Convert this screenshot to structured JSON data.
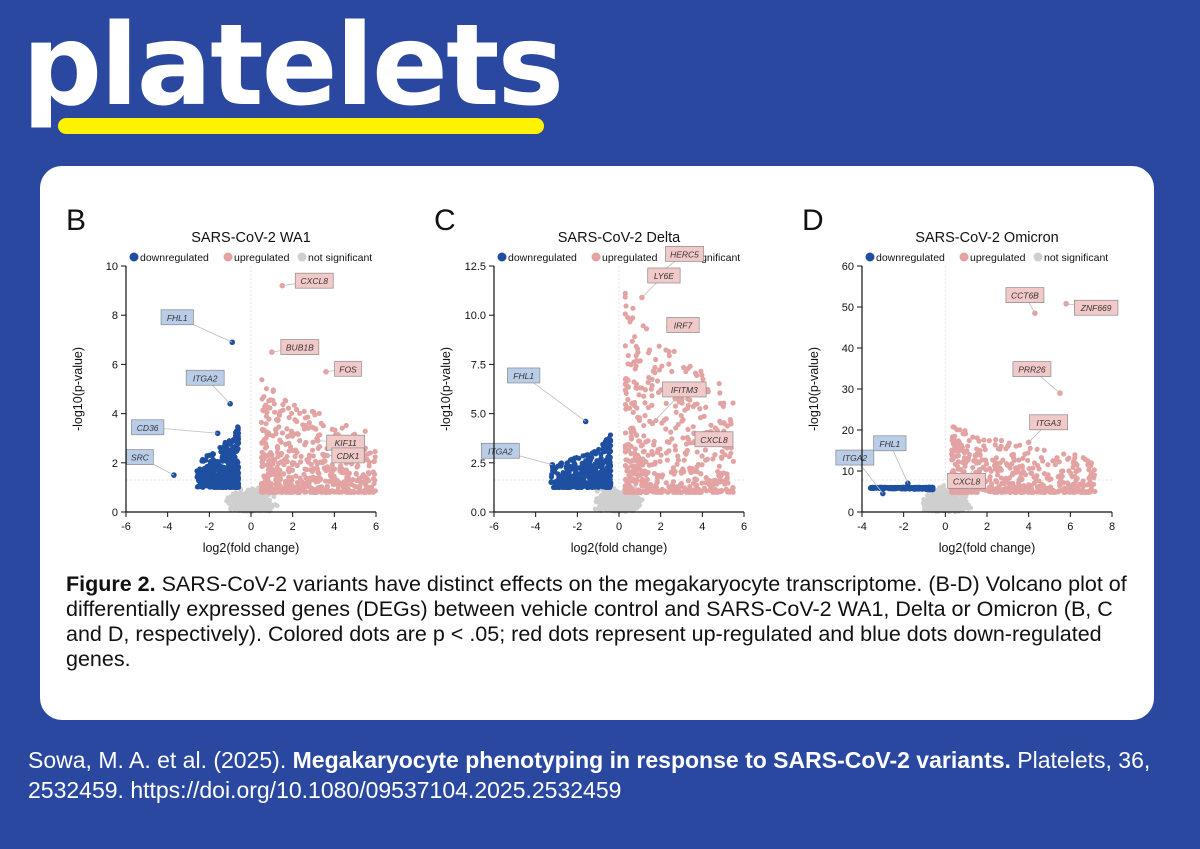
{
  "brand": {
    "name": "platelets",
    "bar_color": "#fff200",
    "bg_color": "#2a48a0"
  },
  "caption": {
    "label": "Figure 2.",
    "text": " SARS-CoV-2 variants have distinct effects on the megakaryocyte transcriptome. (B-D) Volcano plot of differentially expressed genes (DEGs) between vehicle control and SARS-CoV-2 WA1, Delta or Omicron (B, C and D, respectively). Colored dots are p < .05; red dots represent up-regulated and blue dots down-regulated genes."
  },
  "citation": {
    "authors": "Sowa, M. A. et al. (2025). ",
    "title": "Megakaryocyte phenotyping in response to SARS-CoV-2 variants.",
    "source": " Platelets, 36, 2532459. https://doi.org/10.1080/09537104.2025.2532459"
  },
  "colors": {
    "down": "#1f4fa0",
    "up": "#e3a3a3",
    "ns": "#cfcfcf",
    "down_box": "#b9cde8",
    "up_box": "#f1c9c9"
  },
  "chart_data": [
    {
      "type": "scatter",
      "panel_letter": "B",
      "title": "SARS-CoV-2 WA1",
      "legend": [
        "downregulated",
        "upregulated",
        "not significant"
      ],
      "xlabel": "log2(fold change)",
      "ylabel": "-log10(p-value)",
      "xlim": [
        -6,
        6
      ],
      "ylim": [
        0,
        10
      ],
      "xticks": [
        "-6",
        "-4",
        "-2",
        "0",
        "2",
        "4",
        "6"
      ],
      "yticks": [
        "0",
        "2",
        "4",
        "6",
        "8",
        "10"
      ],
      "labeled_genes": [
        {
          "gene": "FHL1",
          "x": -0.9,
          "y": 6.9,
          "regulation": "down"
        },
        {
          "gene": "ITGA2",
          "x": -1.0,
          "y": 4.4,
          "regulation": "down"
        },
        {
          "gene": "CD36",
          "x": -1.6,
          "y": 3.2,
          "regulation": "down"
        },
        {
          "gene": "SRC",
          "x": -3.7,
          "y": 1.5,
          "regulation": "down"
        },
        {
          "gene": "CXCL8",
          "x": 1.5,
          "y": 9.2,
          "regulation": "up"
        },
        {
          "gene": "BUB1B",
          "x": 1.0,
          "y": 6.5,
          "regulation": "up"
        },
        {
          "gene": "FOS",
          "x": 3.6,
          "y": 5.7,
          "regulation": "up"
        },
        {
          "gene": "KIF11",
          "x": 3.2,
          "y": 2.9,
          "regulation": "up"
        },
        {
          "gene": "CDK1",
          "x": 3.6,
          "y": 2.3,
          "regulation": "up"
        }
      ]
    },
    {
      "type": "scatter",
      "panel_letter": "C",
      "title": "SARS-CoV-2 Delta",
      "legend": [
        "downregulated",
        "upregulated",
        "not significant"
      ],
      "xlabel": "log2(fold change)",
      "ylabel": "-log10(p-value)",
      "xlim": [
        -6,
        6
      ],
      "ylim": [
        0,
        12.5
      ],
      "xticks": [
        "-6",
        "-4",
        "-2",
        "0",
        "2",
        "4",
        "6"
      ],
      "yticks": [
        "0.0",
        "2.5",
        "5.0",
        "7.5",
        "10.0",
        "12.5"
      ],
      "labeled_genes": [
        {
          "gene": "FHL1",
          "x": -1.6,
          "y": 4.6,
          "regulation": "down"
        },
        {
          "gene": "ITGA2",
          "x": -3.2,
          "y": 2.4,
          "regulation": "down"
        },
        {
          "gene": "HERC5",
          "x": 1.8,
          "y": 12.0,
          "regulation": "up"
        },
        {
          "gene": "LY6E",
          "x": 1.1,
          "y": 10.9,
          "regulation": "up"
        },
        {
          "gene": "IRF7",
          "x": 2.4,
          "y": 9.4,
          "regulation": "up"
        },
        {
          "gene": "IFITM3",
          "x": 1.6,
          "y": 4.5,
          "regulation": "up"
        },
        {
          "gene": "CXCL8",
          "x": 3.6,
          "y": 4.0,
          "regulation": "up"
        }
      ]
    },
    {
      "type": "scatter",
      "panel_letter": "D",
      "title": "SARS-CoV-2 Omicron",
      "legend": [
        "downregulated",
        "upregulated",
        "not significant"
      ],
      "xlabel": "log2(fold change)",
      "ylabel": "-log10(p-value)",
      "xlim": [
        -4,
        8
      ],
      "ylim": [
        0,
        60
      ],
      "xticks": [
        "-4",
        "-2",
        "0",
        "2",
        "4",
        "6",
        "8"
      ],
      "yticks": [
        "0",
        "10",
        "20",
        "30",
        "40",
        "50",
        "60"
      ],
      "labeled_genes": [
        {
          "gene": "ITGA2",
          "x": -3.0,
          "y": 4.5,
          "regulation": "down"
        },
        {
          "gene": "FHL1",
          "x": -1.8,
          "y": 7.0,
          "regulation": "down"
        },
        {
          "gene": "CCT6B",
          "x": 4.3,
          "y": 48.5,
          "regulation": "up"
        },
        {
          "gene": "ZNF669",
          "x": 5.8,
          "y": 50.8,
          "regulation": "up"
        },
        {
          "gene": "PRR26",
          "x": 5.5,
          "y": 29.0,
          "regulation": "up"
        },
        {
          "gene": "CXCL8",
          "x": 1.5,
          "y": 12.0,
          "regulation": "up"
        },
        {
          "gene": "ITGA3",
          "x": 4.0,
          "y": 17.0,
          "regulation": "up"
        }
      ]
    }
  ]
}
